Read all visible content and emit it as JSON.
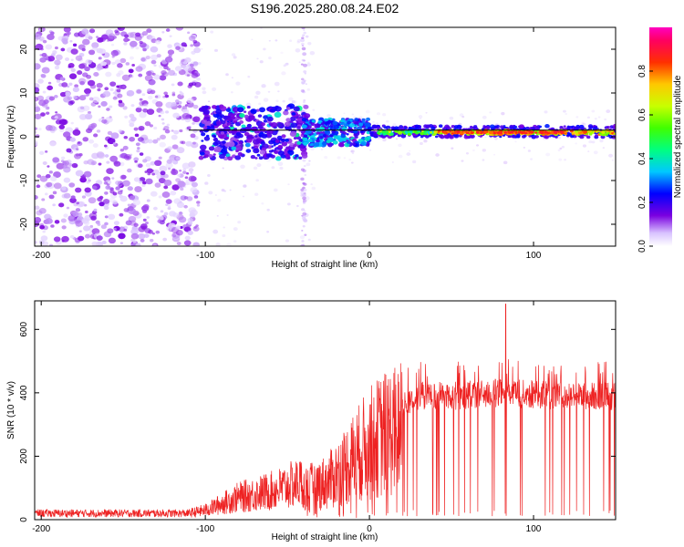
{
  "title": "S196.2025.280.08.24.E02",
  "colors": {
    "snr_line": "#ee2222",
    "ridge_line": "#000000",
    "frame": "#000000"
  },
  "chart_data": [
    {
      "type": "heatmap",
      "xlabel": "Height of straight line (km)",
      "ylabel": "Frequency (Hz)",
      "xlim": [
        -204,
        150
      ],
      "ylim": [
        -25,
        25
      ],
      "xticks": [
        "-200",
        "-100",
        "0",
        "100"
      ],
      "yticks": [
        "20",
        "10",
        "0",
        "-10",
        "-20"
      ],
      "colorbar": {
        "label": "Normalized spectral amplitude",
        "range": [
          0,
          1
        ],
        "ticks": [
          "0.0",
          "0.2",
          "0.4",
          "0.6",
          "0.8"
        ],
        "colormap": "rainbow (white-violet-blue-cyan-green-yellow-red-magenta)"
      },
      "ridge": {
        "x_start": -110,
        "x_end": 150,
        "frequency_hz": 1.5
      },
      "regions": [
        {
          "x_range": [
            -204,
            -103
          ],
          "f_range": [
            -25,
            25
          ],
          "level": "low (0.0-0.15) scattered noise"
        },
        {
          "x_range": [
            -103,
            -40
          ],
          "f_range": [
            -5,
            7
          ],
          "level": "0.1-0.4 energy band"
        },
        {
          "x_range": [
            -40,
            0
          ],
          "f_range": [
            -3,
            4
          ],
          "level": "0.2-0.6 converging"
        },
        {
          "x_range": [
            0,
            150
          ],
          "f_range": [
            0,
            2.5
          ],
          "level": "0.6-0.9 strong narrow line near 1 Hz"
        }
      ]
    },
    {
      "type": "line",
      "xlabel": "Height of straight line (km)",
      "ylabel": "SNR (10 * v/v)",
      "xlim": [
        -204,
        150
      ],
      "ylim": [
        0,
        690
      ],
      "xticks": [
        "-200",
        "-100",
        "0",
        "100"
      ],
      "yticks": [
        "0",
        "200",
        "400",
        "600"
      ],
      "series": [
        {
          "name": "SNR",
          "profile_x": [
            -204,
            -110,
            -100,
            -80,
            -60,
            -40,
            -25,
            -10,
            0,
            10,
            20,
            30,
            50,
            80,
            100,
            120,
            150
          ],
          "profile_y": [
            20,
            20,
            30,
            70,
            90,
            120,
            150,
            240,
            300,
            340,
            360,
            390,
            390,
            400,
            395,
            390,
            390
          ],
          "peak": {
            "x": 83,
            "y": 680
          }
        }
      ]
    }
  ]
}
